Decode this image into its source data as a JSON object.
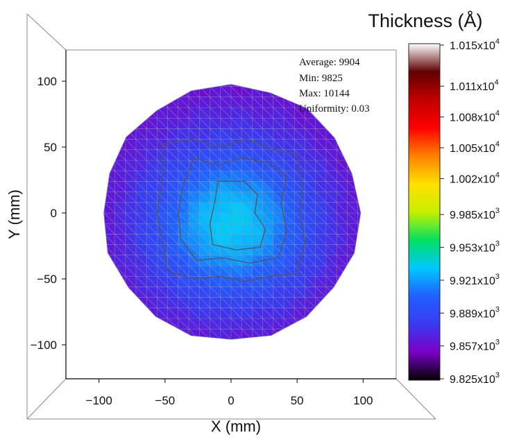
{
  "chart_data": {
    "type": "heatmap",
    "subtype": "wafer-thickness-map",
    "xlabel": "X (mm)",
    "ylabel": "Y (mm)",
    "xlim": [
      -125,
      125
    ],
    "ylim": [
      -125,
      125
    ],
    "x_ticks": [
      -100,
      -50,
      0,
      50,
      100
    ],
    "y_ticks": [
      100,
      50,
      0,
      -50,
      -100
    ],
    "wafer_radius_mm": 97,
    "stats": {
      "average": "Average: 9904",
      "min": "Min: 9825",
      "max": "Max: 10144",
      "uniformity": "Uniformity:  0.03"
    },
    "colorbar": {
      "title": "Thickness (Å)",
      "range": [
        9825,
        10150
      ],
      "ticks": [
        {
          "value": 10150,
          "mant": "1.015x10",
          "exp": "4"
        },
        {
          "value": 10110,
          "mant": "1.011x10",
          "exp": "4"
        },
        {
          "value": 10080,
          "mant": "1.008x10",
          "exp": "4"
        },
        {
          "value": 10050,
          "mant": "1.005x10",
          "exp": "4"
        },
        {
          "value": 10020,
          "mant": "1.002x10",
          "exp": "4"
        },
        {
          "value": 9985,
          "mant": "9.985x10",
          "exp": "3"
        },
        {
          "value": 9953,
          "mant": "9.953x10",
          "exp": "3"
        },
        {
          "value": 9921,
          "mant": "9.921x10",
          "exp": "3"
        },
        {
          "value": 9889,
          "mant": "9.889x10",
          "exp": "3"
        },
        {
          "value": 9857,
          "mant": "9.857x10",
          "exp": "3"
        },
        {
          "value": 9825,
          "mant": "9.825x10",
          "exp": "3"
        }
      ],
      "colors": [
        "#000000",
        "#7a00c8",
        "#3a3af0",
        "#2060ff",
        "#00c8ff",
        "#00e060",
        "#c8f000",
        "#ffe000",
        "#ff8000",
        "#ff0000",
        "#c00000",
        "#600000",
        "#ffffff"
      ]
    },
    "field": {
      "center_x_mm": 0,
      "center_y_mm": -8,
      "peak_value": 9935,
      "edge_value": 9862,
      "min_value": 9858,
      "falloff_radius_mm": 60
    },
    "contours": [
      {
        "level": 9885,
        "points_mm": [
          [
            -52,
            52
          ],
          [
            -30,
            56
          ],
          [
            -8,
            50
          ],
          [
            12,
            56
          ],
          [
            32,
            48
          ],
          [
            50,
            44
          ],
          [
            54,
            20
          ],
          [
            52,
            0
          ],
          [
            56,
            -22
          ],
          [
            50,
            -46
          ],
          [
            30,
            -48
          ],
          [
            10,
            -52
          ],
          [
            -8,
            -48
          ],
          [
            -28,
            -50
          ],
          [
            -48,
            -44
          ],
          [
            -52,
            -22
          ],
          [
            -56,
            0
          ],
          [
            -52,
            26
          ]
        ]
      },
      {
        "level": 9905,
        "points_mm": [
          [
            -28,
            42
          ],
          [
            -10,
            36
          ],
          [
            8,
            42
          ],
          [
            28,
            38
          ],
          [
            42,
            28
          ],
          [
            38,
            8
          ],
          [
            42,
            -14
          ],
          [
            36,
            -34
          ],
          [
            14,
            -38
          ],
          [
            -6,
            -34
          ],
          [
            -26,
            -36
          ],
          [
            -38,
            -20
          ],
          [
            -40,
            0
          ],
          [
            -36,
            22
          ]
        ]
      },
      {
        "level": 9925,
        "points_mm": [
          [
            -10,
            24
          ],
          [
            10,
            24
          ],
          [
            20,
            14
          ],
          [
            18,
            0
          ],
          [
            26,
            -12
          ],
          [
            22,
            -26
          ],
          [
            4,
            -28
          ],
          [
            -14,
            -24
          ],
          [
            -16,
            -8
          ],
          [
            -12,
            10
          ]
        ]
      }
    ]
  }
}
